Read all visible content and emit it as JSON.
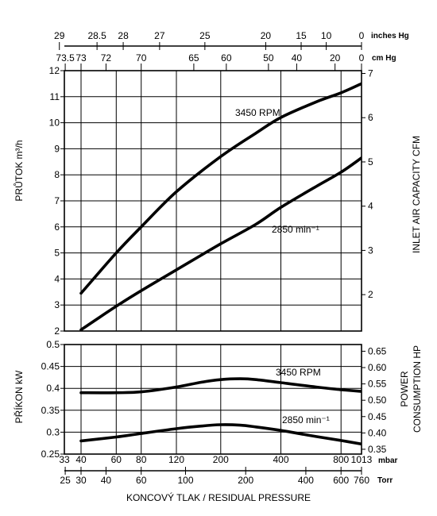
{
  "chart_data": [
    {
      "type": "line",
      "title": "",
      "ylabel": "PRŮTOK  m³/h",
      "ylabel_right": "INLET AIR CAPACITY   CFM",
      "ylim": [
        2,
        12
      ],
      "yticks": [
        2,
        3,
        4,
        5,
        6,
        7,
        8,
        9,
        10,
        11,
        12
      ],
      "y2lim": [
        0.7,
        7
      ],
      "y2ticks": [
        2,
        3,
        4,
        5,
        6,
        7
      ],
      "x_axis_scale": "log",
      "x_unit": "mbar",
      "xlim": [
        33,
        1013
      ],
      "grid": true,
      "series": [
        {
          "name": "3450 RPM",
          "x": [
            40,
            60,
            80,
            120,
            200,
            300,
            400,
            600,
            800,
            1013
          ],
          "y": [
            3.45,
            5.0,
            6.0,
            7.35,
            8.7,
            9.6,
            10.2,
            10.8,
            11.15,
            11.5
          ]
        },
        {
          "name": "2850 min⁻¹",
          "x": [
            40,
            60,
            80,
            120,
            200,
            300,
            400,
            600,
            800,
            1013
          ],
          "y": [
            2.05,
            2.95,
            3.55,
            4.35,
            5.35,
            6.1,
            6.75,
            7.55,
            8.1,
            8.65
          ]
        }
      ]
    },
    {
      "type": "line",
      "title": "",
      "ylabel": "PŘÍKON  kW",
      "ylabel_right_1": "POWER",
      "ylabel_right_2": "CONSUMPTION   HP",
      "ylim": [
        0.25,
        0.5
      ],
      "yticks": [
        0.25,
        0.3,
        0.35,
        0.4,
        0.45,
        0.5
      ],
      "y2ticks": [
        0.35,
        0.4,
        0.45,
        0.5,
        0.55,
        0.6,
        0.65
      ],
      "x_axis_scale": "log",
      "xlim": [
        33,
        1013
      ],
      "grid": true,
      "series": [
        {
          "name": "3450 RPM",
          "x": [
            40,
            60,
            80,
            120,
            160,
            200,
            250,
            300,
            400,
            600,
            800,
            1013
          ],
          "y": [
            0.39,
            0.39,
            0.392,
            0.403,
            0.414,
            0.42,
            0.422,
            0.42,
            0.413,
            0.403,
            0.397,
            0.393
          ]
        },
        {
          "name": "2850 min⁻¹",
          "x": [
            40,
            60,
            80,
            120,
            160,
            200,
            250,
            300,
            400,
            600,
            800,
            1013
          ],
          "y": [
            0.28,
            0.289,
            0.297,
            0.308,
            0.314,
            0.317,
            0.316,
            0.312,
            0.304,
            0.29,
            0.281,
            0.273
          ]
        }
      ]
    }
  ],
  "axes": {
    "inches_hg_labels": [
      "29",
      "28.5",
      "28",
      "27",
      "25",
      "20",
      "15",
      "10",
      "0"
    ],
    "inches_hg_unit": "inches Hg",
    "cm_hg_labels": [
      "73.5",
      "73",
      "72",
      "70",
      "65",
      "60",
      "50",
      "40",
      "20",
      "0"
    ],
    "cm_hg_unit": "cm  Hg",
    "mbar_labels": [
      "33",
      "40",
      "60",
      "80",
      "120",
      "200",
      "400",
      "800",
      "1013"
    ],
    "mbar_unit": "mbar",
    "torr_labels": [
      "25",
      "30",
      "40",
      "60",
      "100",
      "200",
      "400",
      "600",
      "760"
    ],
    "torr_unit": "Torr",
    "xlabel": "KONCOVÝ TLAK / RESIDUAL PRESSURE"
  }
}
